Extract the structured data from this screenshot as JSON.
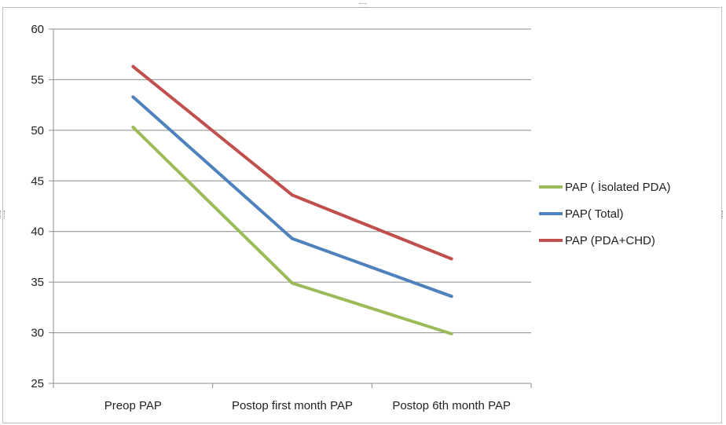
{
  "chart_data": {
    "type": "line",
    "categories": [
      "Preop PAP",
      "Postop first month PAP",
      "Postop 6th month PAP"
    ],
    "series": [
      {
        "name": "PAP ( İsolated PDA)",
        "values": [
          50.3,
          34.9,
          29.9
        ],
        "color": "#9bbb59"
      },
      {
        "name": "PAP( Total)",
        "values": [
          53.3,
          39.3,
          33.6
        ],
        "color": "#4f81bd"
      },
      {
        "name": "PAP (PDA+CHD)",
        "values": [
          56.3,
          43.6,
          37.3
        ],
        "color": "#c0504d"
      }
    ],
    "yticks": [
      "25",
      "30",
      "35",
      "40",
      "45",
      "50",
      "55",
      "60"
    ],
    "ylim": [
      25,
      60
    ],
    "grid": true,
    "legend": "right"
  }
}
